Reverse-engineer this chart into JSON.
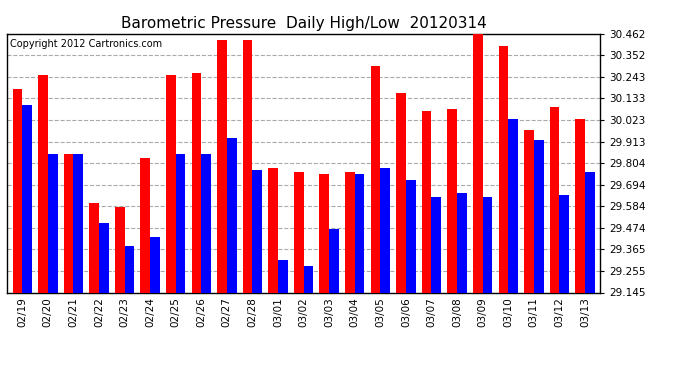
{
  "title": "Barometric Pressure  Daily High/Low  20120314",
  "copyright": "Copyright 2012 Cartronics.com",
  "dates": [
    "02/19",
    "02/20",
    "02/21",
    "02/22",
    "02/23",
    "02/24",
    "02/25",
    "02/26",
    "02/27",
    "02/28",
    "03/01",
    "03/02",
    "03/03",
    "03/04",
    "03/05",
    "03/06",
    "03/07",
    "03/08",
    "03/09",
    "03/10",
    "03/11",
    "03/12",
    "03/13"
  ],
  "highs": [
    30.18,
    30.25,
    29.85,
    29.6,
    29.58,
    29.83,
    30.25,
    30.26,
    30.43,
    30.43,
    29.78,
    29.76,
    29.75,
    29.76,
    30.3,
    30.16,
    30.07,
    30.08,
    30.46,
    30.4,
    29.97,
    30.09,
    30.03
  ],
  "lows": [
    30.1,
    29.85,
    29.85,
    29.5,
    29.38,
    29.43,
    29.85,
    29.85,
    29.93,
    29.77,
    29.31,
    29.28,
    29.47,
    29.75,
    29.78,
    29.72,
    29.63,
    29.65,
    29.63,
    30.03,
    29.92,
    29.64,
    29.76
  ],
  "high_color": "#ff0000",
  "low_color": "#0000ff",
  "bg_color": "#ffffff",
  "plot_bg_color": "#ffffff",
  "grid_color": "#aaaaaa",
  "ymin": 29.145,
  "ymax": 30.462,
  "yticks": [
    29.145,
    29.255,
    29.365,
    29.474,
    29.584,
    29.694,
    29.804,
    29.913,
    30.023,
    30.133,
    30.243,
    30.352,
    30.462
  ],
  "bar_width": 0.38,
  "title_fontsize": 11,
  "copyright_fontsize": 7,
  "tick_fontsize": 7.5
}
